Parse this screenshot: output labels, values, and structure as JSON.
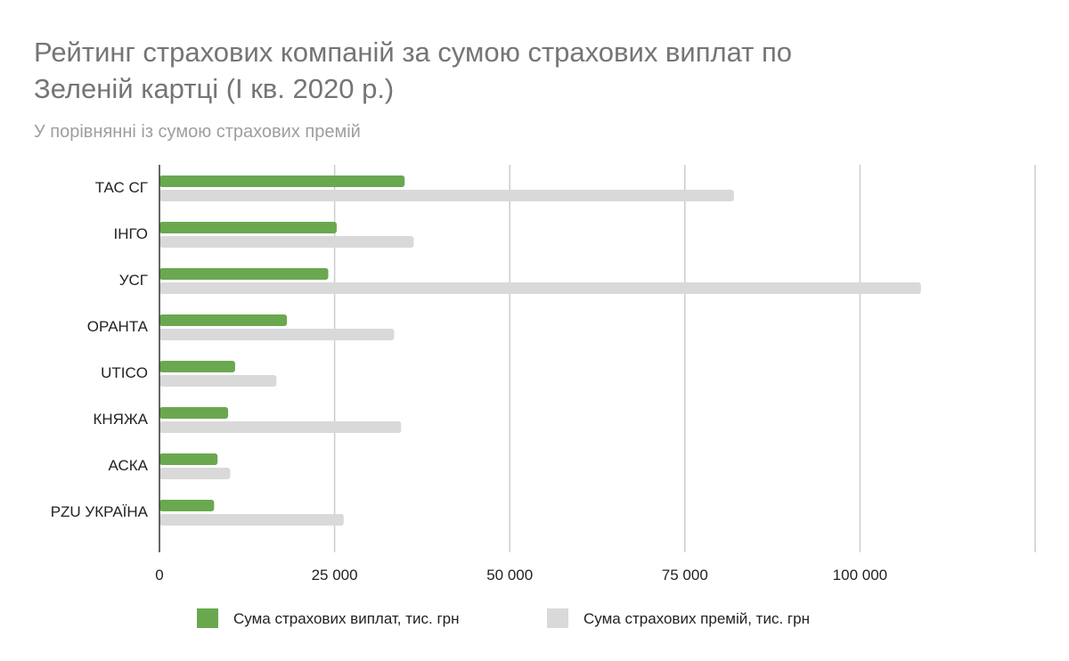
{
  "chart_data": {
    "type": "bar",
    "orientation": "horizontal",
    "title_lines": [
      "Рейтинг страхових компаній за сумою страхових виплат по",
      "Зеленій картці (I кв. 2020 р.)"
    ],
    "subtitle": "У порівнянні із сумою страхових премій",
    "categories": [
      "ТАС СГ",
      "ІНГО",
      "УСГ",
      "ОРАНТА",
      "UTICO",
      "КНЯЖА",
      "АСКА",
      "PZU УКРАЇНА"
    ],
    "series": [
      {
        "name": "Сума страхових виплат, тис. грн",
        "color": "#6aa84f",
        "values": [
          35000,
          25300,
          24100,
          18200,
          10800,
          9800,
          8300,
          7800
        ]
      },
      {
        "name": "Сума страхових премій, тис. грн",
        "color": "#d9d9d9",
        "values": [
          82000,
          36300,
          108700,
          33500,
          16700,
          34500,
          10100,
          26300
        ]
      }
    ],
    "xlim": [
      0,
      125000
    ],
    "xticks": [
      0,
      25000,
      50000,
      75000,
      100000,
      125000
    ],
    "xtick_labels": [
      "0",
      "25 000",
      "50 000",
      "75 000",
      "100 000",
      ""
    ],
    "grid": true,
    "legend_position": "bottom"
  }
}
